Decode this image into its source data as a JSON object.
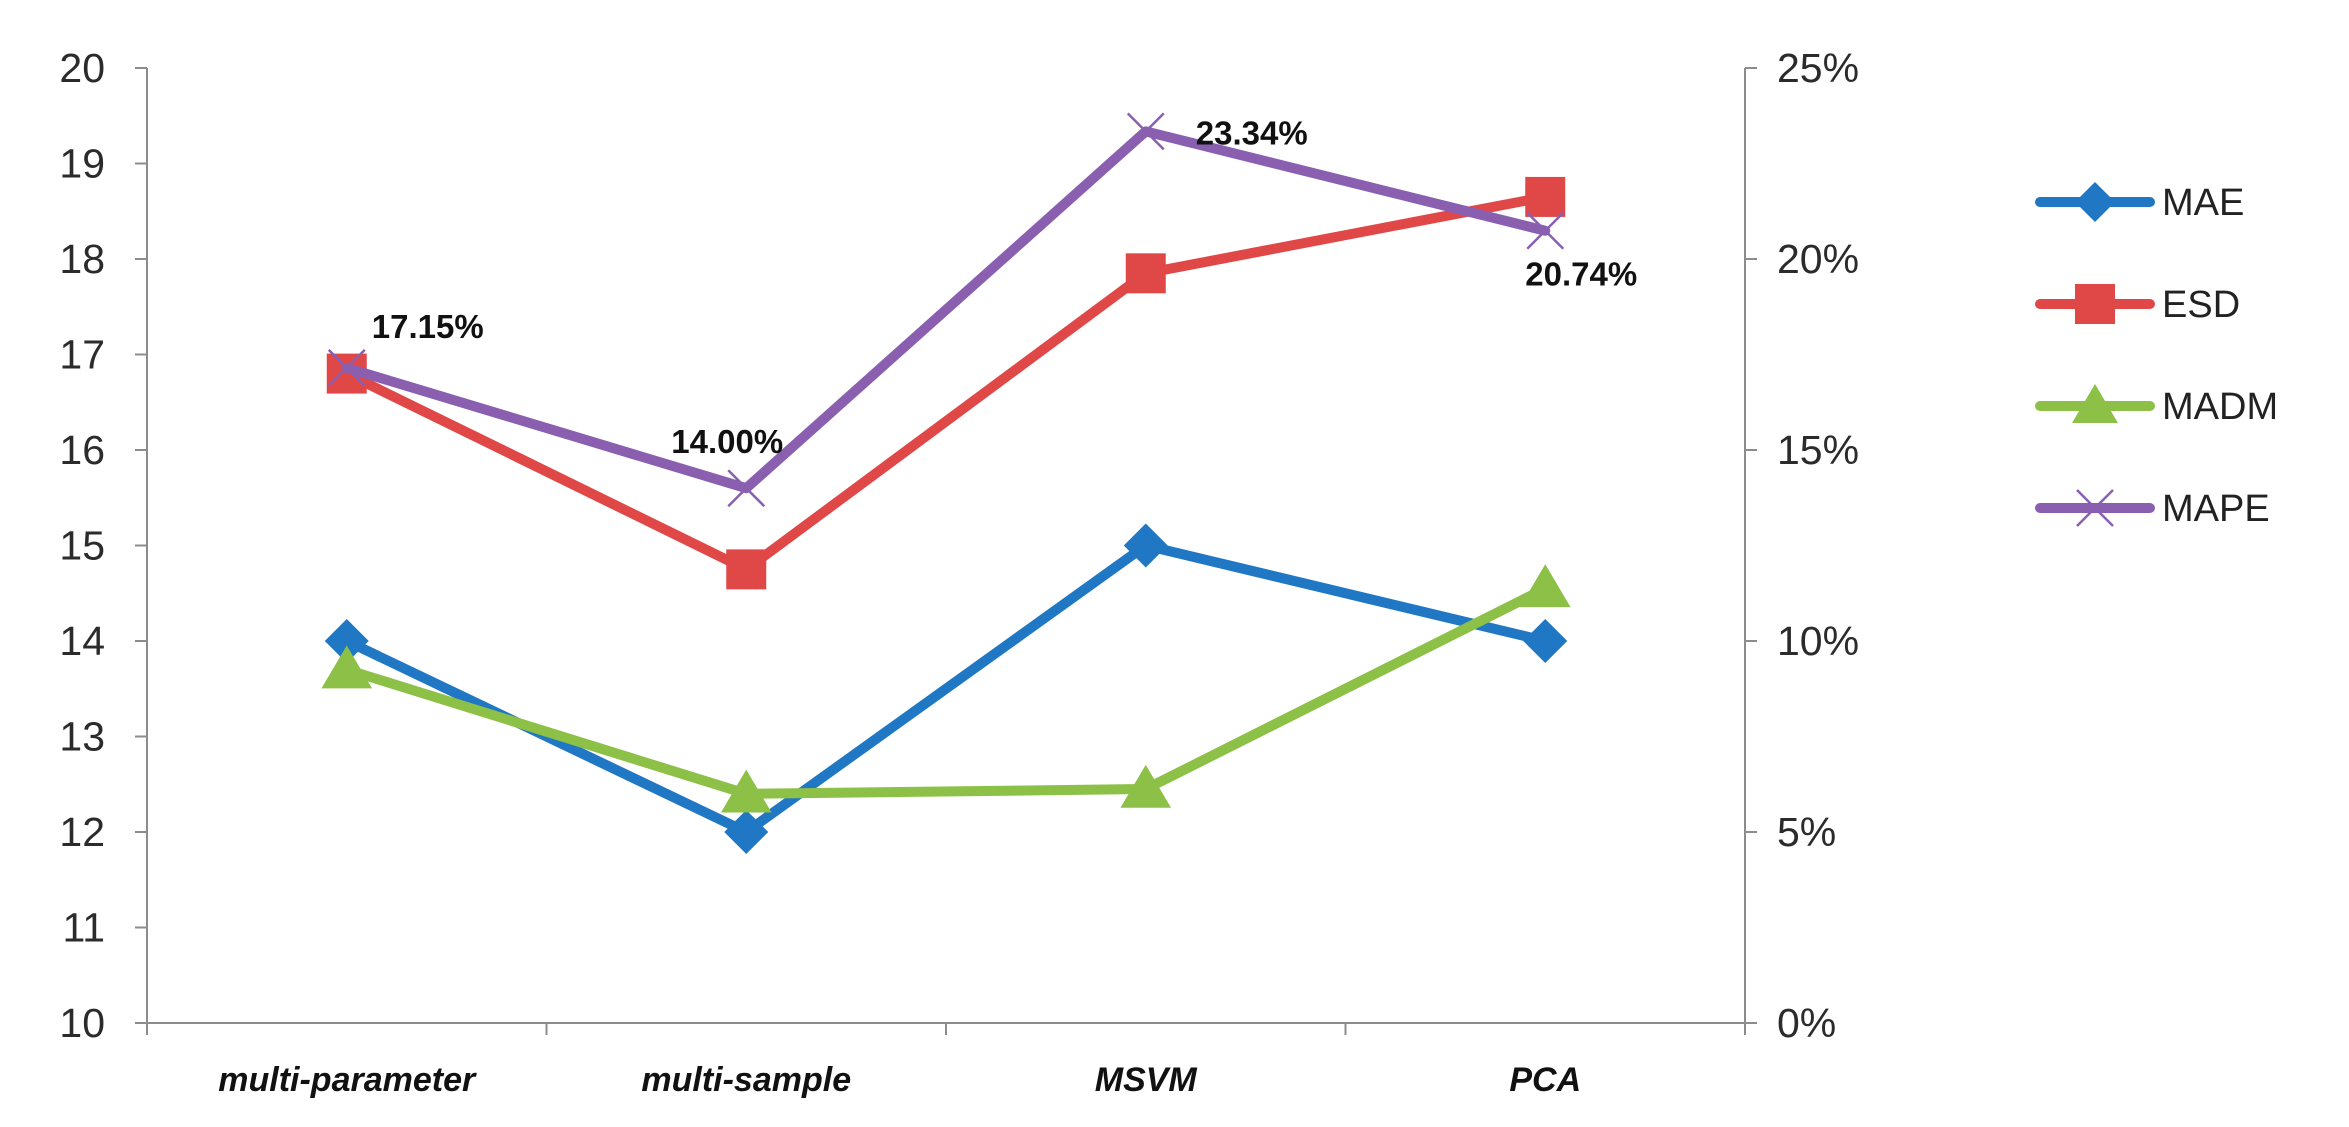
{
  "chart_data": {
    "type": "line",
    "title": "",
    "xlabel": "",
    "ylabel": "",
    "categories": [
      "multi-parameter",
      "multi-sample",
      "MSVM",
      "PCA"
    ],
    "left_axis": {
      "ylim": [
        10,
        20
      ],
      "ticks": [
        "10",
        "11",
        "12",
        "13",
        "14",
        "15",
        "16",
        "17",
        "18",
        "19",
        "20"
      ]
    },
    "right_axis": {
      "ylim": [
        0,
        25
      ],
      "ticks": [
        "0%",
        "5%",
        "10%",
        "15%",
        "20%",
        "25%"
      ]
    },
    "series": [
      {
        "name": "MAE",
        "axis": "left",
        "color": "#2077c3",
        "marker": "diamond",
        "values": [
          14,
          12,
          15,
          14
        ]
      },
      {
        "name": "ESD",
        "axis": "left",
        "color": "#e04848",
        "marker": "square",
        "values": [
          16.8,
          14.75,
          17.85,
          18.65
        ]
      },
      {
        "name": "MADM",
        "axis": "left",
        "color": "#8cc046",
        "marker": "triangle",
        "values": [
          13.7,
          12.4,
          12.45,
          14.55
        ]
      },
      {
        "name": "MAPE",
        "axis": "right",
        "color": "#8a5fb0",
        "marker": "x",
        "values": [
          17.15,
          14.0,
          23.34,
          20.74
        ]
      }
    ],
    "annotations": [
      "17.15%",
      "14.00%",
      "23.34%",
      "20.74%"
    ],
    "legend_position": "right",
    "grid": false
  }
}
